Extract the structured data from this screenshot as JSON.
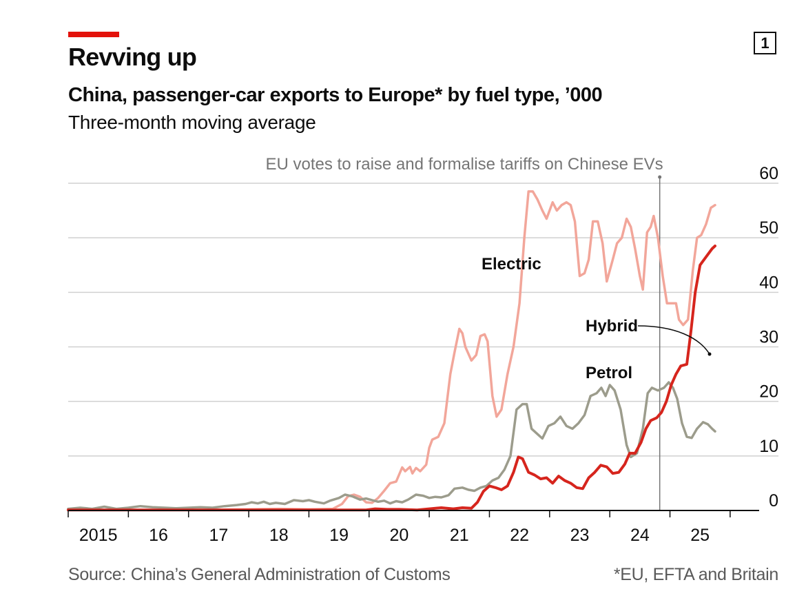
{
  "header": {
    "title": "Revving up",
    "subtitle": "China, passenger-car exports to Europe* by fuel type, ’000",
    "subsubtitle": "Three-month moving average",
    "chart_number": "1"
  },
  "footer": {
    "source": "Source: China’s General Administration of Customs",
    "footnote": "*EU, EFTA and Britain"
  },
  "colors": {
    "brand": "#e3120b",
    "electric": "#f2a69a",
    "hybrid": "#d6251d",
    "petrol": "#9c9c8c",
    "grid": "#d0d0d0",
    "annotation": "#757575"
  },
  "chart_data": {
    "type": "line",
    "title": "China, passenger-car exports to Europe* by fuel type, ’000",
    "ylabel": "’000",
    "ylim": [
      0,
      60
    ],
    "yticks": [
      0,
      10,
      20,
      30,
      40,
      50,
      60
    ],
    "xlim": [
      2015.0,
      2026.0
    ],
    "xtick_labels": [
      {
        "x": 2015.5,
        "label": "2015"
      },
      {
        "x": 2016.5,
        "label": "16"
      },
      {
        "x": 2017.5,
        "label": "17"
      },
      {
        "x": 2018.5,
        "label": "18"
      },
      {
        "x": 2019.5,
        "label": "19"
      },
      {
        "x": 2020.5,
        "label": "20"
      },
      {
        "x": 2021.5,
        "label": "21"
      },
      {
        "x": 2022.5,
        "label": "22"
      },
      {
        "x": 2023.5,
        "label": "23"
      },
      {
        "x": 2024.5,
        "label": "24"
      },
      {
        "x": 2025.5,
        "label": "25"
      }
    ],
    "annotation": {
      "x": 2024.83,
      "text": "EU votes to raise and formalise tariffs on Chinese EVs"
    },
    "series": [
      {
        "name": "Electric",
        "label": "Electric",
        "points": [
          [
            2015.0,
            0.1
          ],
          [
            2016.0,
            0.1
          ],
          [
            2017.0,
            0.1
          ],
          [
            2018.0,
            0.2
          ],
          [
            2018.5,
            0.3
          ],
          [
            2019.0,
            0.2
          ],
          [
            2019.4,
            0.3
          ],
          [
            2019.55,
            1.2
          ],
          [
            2019.65,
            2.6
          ],
          [
            2019.75,
            2.9
          ],
          [
            2019.85,
            2.5
          ],
          [
            2019.95,
            1.5
          ],
          [
            2020.05,
            1.4
          ],
          [
            2020.15,
            2.3
          ],
          [
            2020.25,
            3.6
          ],
          [
            2020.35,
            5.0
          ],
          [
            2020.45,
            5.3
          ],
          [
            2020.55,
            7.9
          ],
          [
            2020.6,
            7.2
          ],
          [
            2020.68,
            8.0
          ],
          [
            2020.72,
            6.8
          ],
          [
            2020.78,
            7.8
          ],
          [
            2020.85,
            7.2
          ],
          [
            2020.95,
            8.4
          ],
          [
            2021.0,
            11.5
          ],
          [
            2021.05,
            13.0
          ],
          [
            2021.15,
            13.5
          ],
          [
            2021.25,
            16.0
          ],
          [
            2021.35,
            25.0
          ],
          [
            2021.42,
            29.0
          ],
          [
            2021.5,
            33.3
          ],
          [
            2021.55,
            32.5
          ],
          [
            2021.6,
            30.0
          ],
          [
            2021.7,
            27.5
          ],
          [
            2021.78,
            28.5
          ],
          [
            2021.85,
            32.0
          ],
          [
            2021.92,
            32.3
          ],
          [
            2021.97,
            31.0
          ],
          [
            2022.05,
            21.0
          ],
          [
            2022.12,
            17.2
          ],
          [
            2022.2,
            18.5
          ],
          [
            2022.3,
            25.0
          ],
          [
            2022.4,
            30.0
          ],
          [
            2022.5,
            38.0
          ],
          [
            2022.58,
            50.0
          ],
          [
            2022.65,
            58.5
          ],
          [
            2022.72,
            58.5
          ],
          [
            2022.8,
            57.0
          ],
          [
            2022.88,
            55.0
          ],
          [
            2022.95,
            53.5
          ],
          [
            2023.05,
            56.5
          ],
          [
            2023.12,
            55.0
          ],
          [
            2023.2,
            56.0
          ],
          [
            2023.28,
            56.5
          ],
          [
            2023.35,
            56.0
          ],
          [
            2023.42,
            53.0
          ],
          [
            2023.5,
            43.0
          ],
          [
            2023.58,
            43.5
          ],
          [
            2023.65,
            46.0
          ],
          [
            2023.72,
            53.0
          ],
          [
            2023.8,
            53.0
          ],
          [
            2023.88,
            49.0
          ],
          [
            2023.95,
            42.0
          ],
          [
            2024.05,
            46.0
          ],
          [
            2024.12,
            49.0
          ],
          [
            2024.2,
            50.0
          ],
          [
            2024.28,
            53.5
          ],
          [
            2024.35,
            52.0
          ],
          [
            2024.42,
            48.0
          ],
          [
            2024.5,
            43.0
          ],
          [
            2024.55,
            40.5
          ],
          [
            2024.62,
            51.0
          ],
          [
            2024.68,
            52.0
          ],
          [
            2024.73,
            54.0
          ],
          [
            2024.8,
            50.0
          ],
          [
            2024.88,
            43.0
          ],
          [
            2024.95,
            38.0
          ],
          [
            2025.02,
            38.0
          ],
          [
            2025.1,
            38.0
          ],
          [
            2025.15,
            35.0
          ],
          [
            2025.22,
            34.0
          ],
          [
            2025.3,
            35.0
          ],
          [
            2025.38,
            44.0
          ],
          [
            2025.45,
            50.0
          ],
          [
            2025.52,
            50.5
          ],
          [
            2025.6,
            52.5
          ],
          [
            2025.68,
            55.5
          ],
          [
            2025.75,
            56.0
          ]
        ]
      },
      {
        "name": "Hybrid",
        "label": "Hybrid",
        "points": [
          [
            2015.0,
            0.1
          ],
          [
            2016.0,
            0.1
          ],
          [
            2017.0,
            0.1
          ],
          [
            2018.0,
            0.1
          ],
          [
            2019.0,
            0.1
          ],
          [
            2019.95,
            0.1
          ],
          [
            2020.1,
            0.3
          ],
          [
            2020.3,
            0.2
          ],
          [
            2020.5,
            0.2
          ],
          [
            2020.8,
            0.1
          ],
          [
            2021.0,
            0.3
          ],
          [
            2021.2,
            0.5
          ],
          [
            2021.4,
            0.3
          ],
          [
            2021.55,
            0.5
          ],
          [
            2021.7,
            0.4
          ],
          [
            2021.8,
            1.5
          ],
          [
            2021.9,
            3.5
          ],
          [
            2022.0,
            4.5
          ],
          [
            2022.1,
            4.2
          ],
          [
            2022.2,
            3.8
          ],
          [
            2022.3,
            4.5
          ],
          [
            2022.4,
            7.0
          ],
          [
            2022.48,
            9.8
          ],
          [
            2022.55,
            9.5
          ],
          [
            2022.65,
            7.0
          ],
          [
            2022.75,
            6.5
          ],
          [
            2022.85,
            5.8
          ],
          [
            2022.95,
            6.0
          ],
          [
            2023.05,
            5.0
          ],
          [
            2023.15,
            6.3
          ],
          [
            2023.25,
            5.5
          ],
          [
            2023.35,
            5.0
          ],
          [
            2023.45,
            4.2
          ],
          [
            2023.55,
            4.0
          ],
          [
            2023.65,
            6.0
          ],
          [
            2023.75,
            7.0
          ],
          [
            2023.85,
            8.3
          ],
          [
            2023.95,
            8.0
          ],
          [
            2024.05,
            6.8
          ],
          [
            2024.15,
            7.0
          ],
          [
            2024.25,
            8.5
          ],
          [
            2024.33,
            10.5
          ],
          [
            2024.42,
            10.5
          ],
          [
            2024.52,
            12.5
          ],
          [
            2024.6,
            15.0
          ],
          [
            2024.68,
            16.5
          ],
          [
            2024.78,
            17.0
          ],
          [
            2024.86,
            18.0
          ],
          [
            2024.94,
            20.0
          ],
          [
            2025.02,
            23.0
          ],
          [
            2025.1,
            25.0
          ],
          [
            2025.18,
            26.5
          ],
          [
            2025.28,
            26.8
          ],
          [
            2025.35,
            33.0
          ],
          [
            2025.42,
            40.0
          ],
          [
            2025.5,
            45.0
          ],
          [
            2025.6,
            46.5
          ],
          [
            2025.7,
            48.0
          ],
          [
            2025.75,
            48.5
          ]
        ]
      },
      {
        "name": "Petrol",
        "label": "Petrol",
        "points": [
          [
            2015.0,
            0.3
          ],
          [
            2015.2,
            0.5
          ],
          [
            2015.4,
            0.3
          ],
          [
            2015.6,
            0.7
          ],
          [
            2015.8,
            0.3
          ],
          [
            2016.0,
            0.5
          ],
          [
            2016.2,
            0.8
          ],
          [
            2016.4,
            0.6
          ],
          [
            2016.6,
            0.5
          ],
          [
            2016.8,
            0.4
          ],
          [
            2017.0,
            0.5
          ],
          [
            2017.2,
            0.6
          ],
          [
            2017.4,
            0.5
          ],
          [
            2017.6,
            0.8
          ],
          [
            2017.8,
            1.0
          ],
          [
            2017.95,
            1.2
          ],
          [
            2018.05,
            1.5
          ],
          [
            2018.15,
            1.3
          ],
          [
            2018.25,
            1.6
          ],
          [
            2018.35,
            1.2
          ],
          [
            2018.45,
            1.4
          ],
          [
            2018.6,
            1.2
          ],
          [
            2018.75,
            1.9
          ],
          [
            2018.9,
            1.7
          ],
          [
            2019.0,
            1.9
          ],
          [
            2019.1,
            1.6
          ],
          [
            2019.25,
            1.3
          ],
          [
            2019.35,
            1.8
          ],
          [
            2019.5,
            2.3
          ],
          [
            2019.6,
            2.9
          ],
          [
            2019.72,
            2.6
          ],
          [
            2019.85,
            2.0
          ],
          [
            2019.95,
            2.2
          ],
          [
            2020.05,
            1.9
          ],
          [
            2020.15,
            1.6
          ],
          [
            2020.25,
            1.8
          ],
          [
            2020.35,
            1.3
          ],
          [
            2020.45,
            1.7
          ],
          [
            2020.55,
            1.5
          ],
          [
            2020.65,
            2.0
          ],
          [
            2020.78,
            2.9
          ],
          [
            2020.9,
            2.7
          ],
          [
            2021.0,
            2.3
          ],
          [
            2021.1,
            2.5
          ],
          [
            2021.2,
            2.4
          ],
          [
            2021.32,
            2.8
          ],
          [
            2021.42,
            4.0
          ],
          [
            2021.55,
            4.2
          ],
          [
            2021.65,
            3.8
          ],
          [
            2021.75,
            3.6
          ],
          [
            2021.85,
            4.2
          ],
          [
            2021.95,
            4.5
          ],
          [
            2022.05,
            5.5
          ],
          [
            2022.15,
            6.0
          ],
          [
            2022.25,
            7.5
          ],
          [
            2022.35,
            10.0
          ],
          [
            2022.45,
            18.5
          ],
          [
            2022.55,
            19.5
          ],
          [
            2022.62,
            19.5
          ],
          [
            2022.7,
            15.0
          ],
          [
            2022.8,
            14.0
          ],
          [
            2022.88,
            13.2
          ],
          [
            2022.98,
            15.5
          ],
          [
            2023.08,
            16.0
          ],
          [
            2023.18,
            17.2
          ],
          [
            2023.28,
            15.5
          ],
          [
            2023.38,
            15.0
          ],
          [
            2023.48,
            16.0
          ],
          [
            2023.58,
            17.5
          ],
          [
            2023.68,
            21.0
          ],
          [
            2023.78,
            21.5
          ],
          [
            2023.86,
            22.5
          ],
          [
            2023.93,
            21.0
          ],
          [
            2024.0,
            23.0
          ],
          [
            2024.08,
            22.0
          ],
          [
            2024.18,
            18.5
          ],
          [
            2024.28,
            12.0
          ],
          [
            2024.35,
            9.8
          ],
          [
            2024.45,
            10.5
          ],
          [
            2024.55,
            15.0
          ],
          [
            2024.63,
            21.5
          ],
          [
            2024.7,
            22.5
          ],
          [
            2024.8,
            22.0
          ],
          [
            2024.9,
            22.5
          ],
          [
            2024.98,
            23.5
          ],
          [
            2025.05,
            22.5
          ],
          [
            2025.12,
            20.5
          ],
          [
            2025.2,
            16.0
          ],
          [
            2025.28,
            13.5
          ],
          [
            2025.36,
            13.3
          ],
          [
            2025.45,
            15.0
          ],
          [
            2025.55,
            16.2
          ],
          [
            2025.63,
            15.8
          ],
          [
            2025.7,
            15.0
          ],
          [
            2025.75,
            14.5
          ]
        ]
      }
    ]
  }
}
